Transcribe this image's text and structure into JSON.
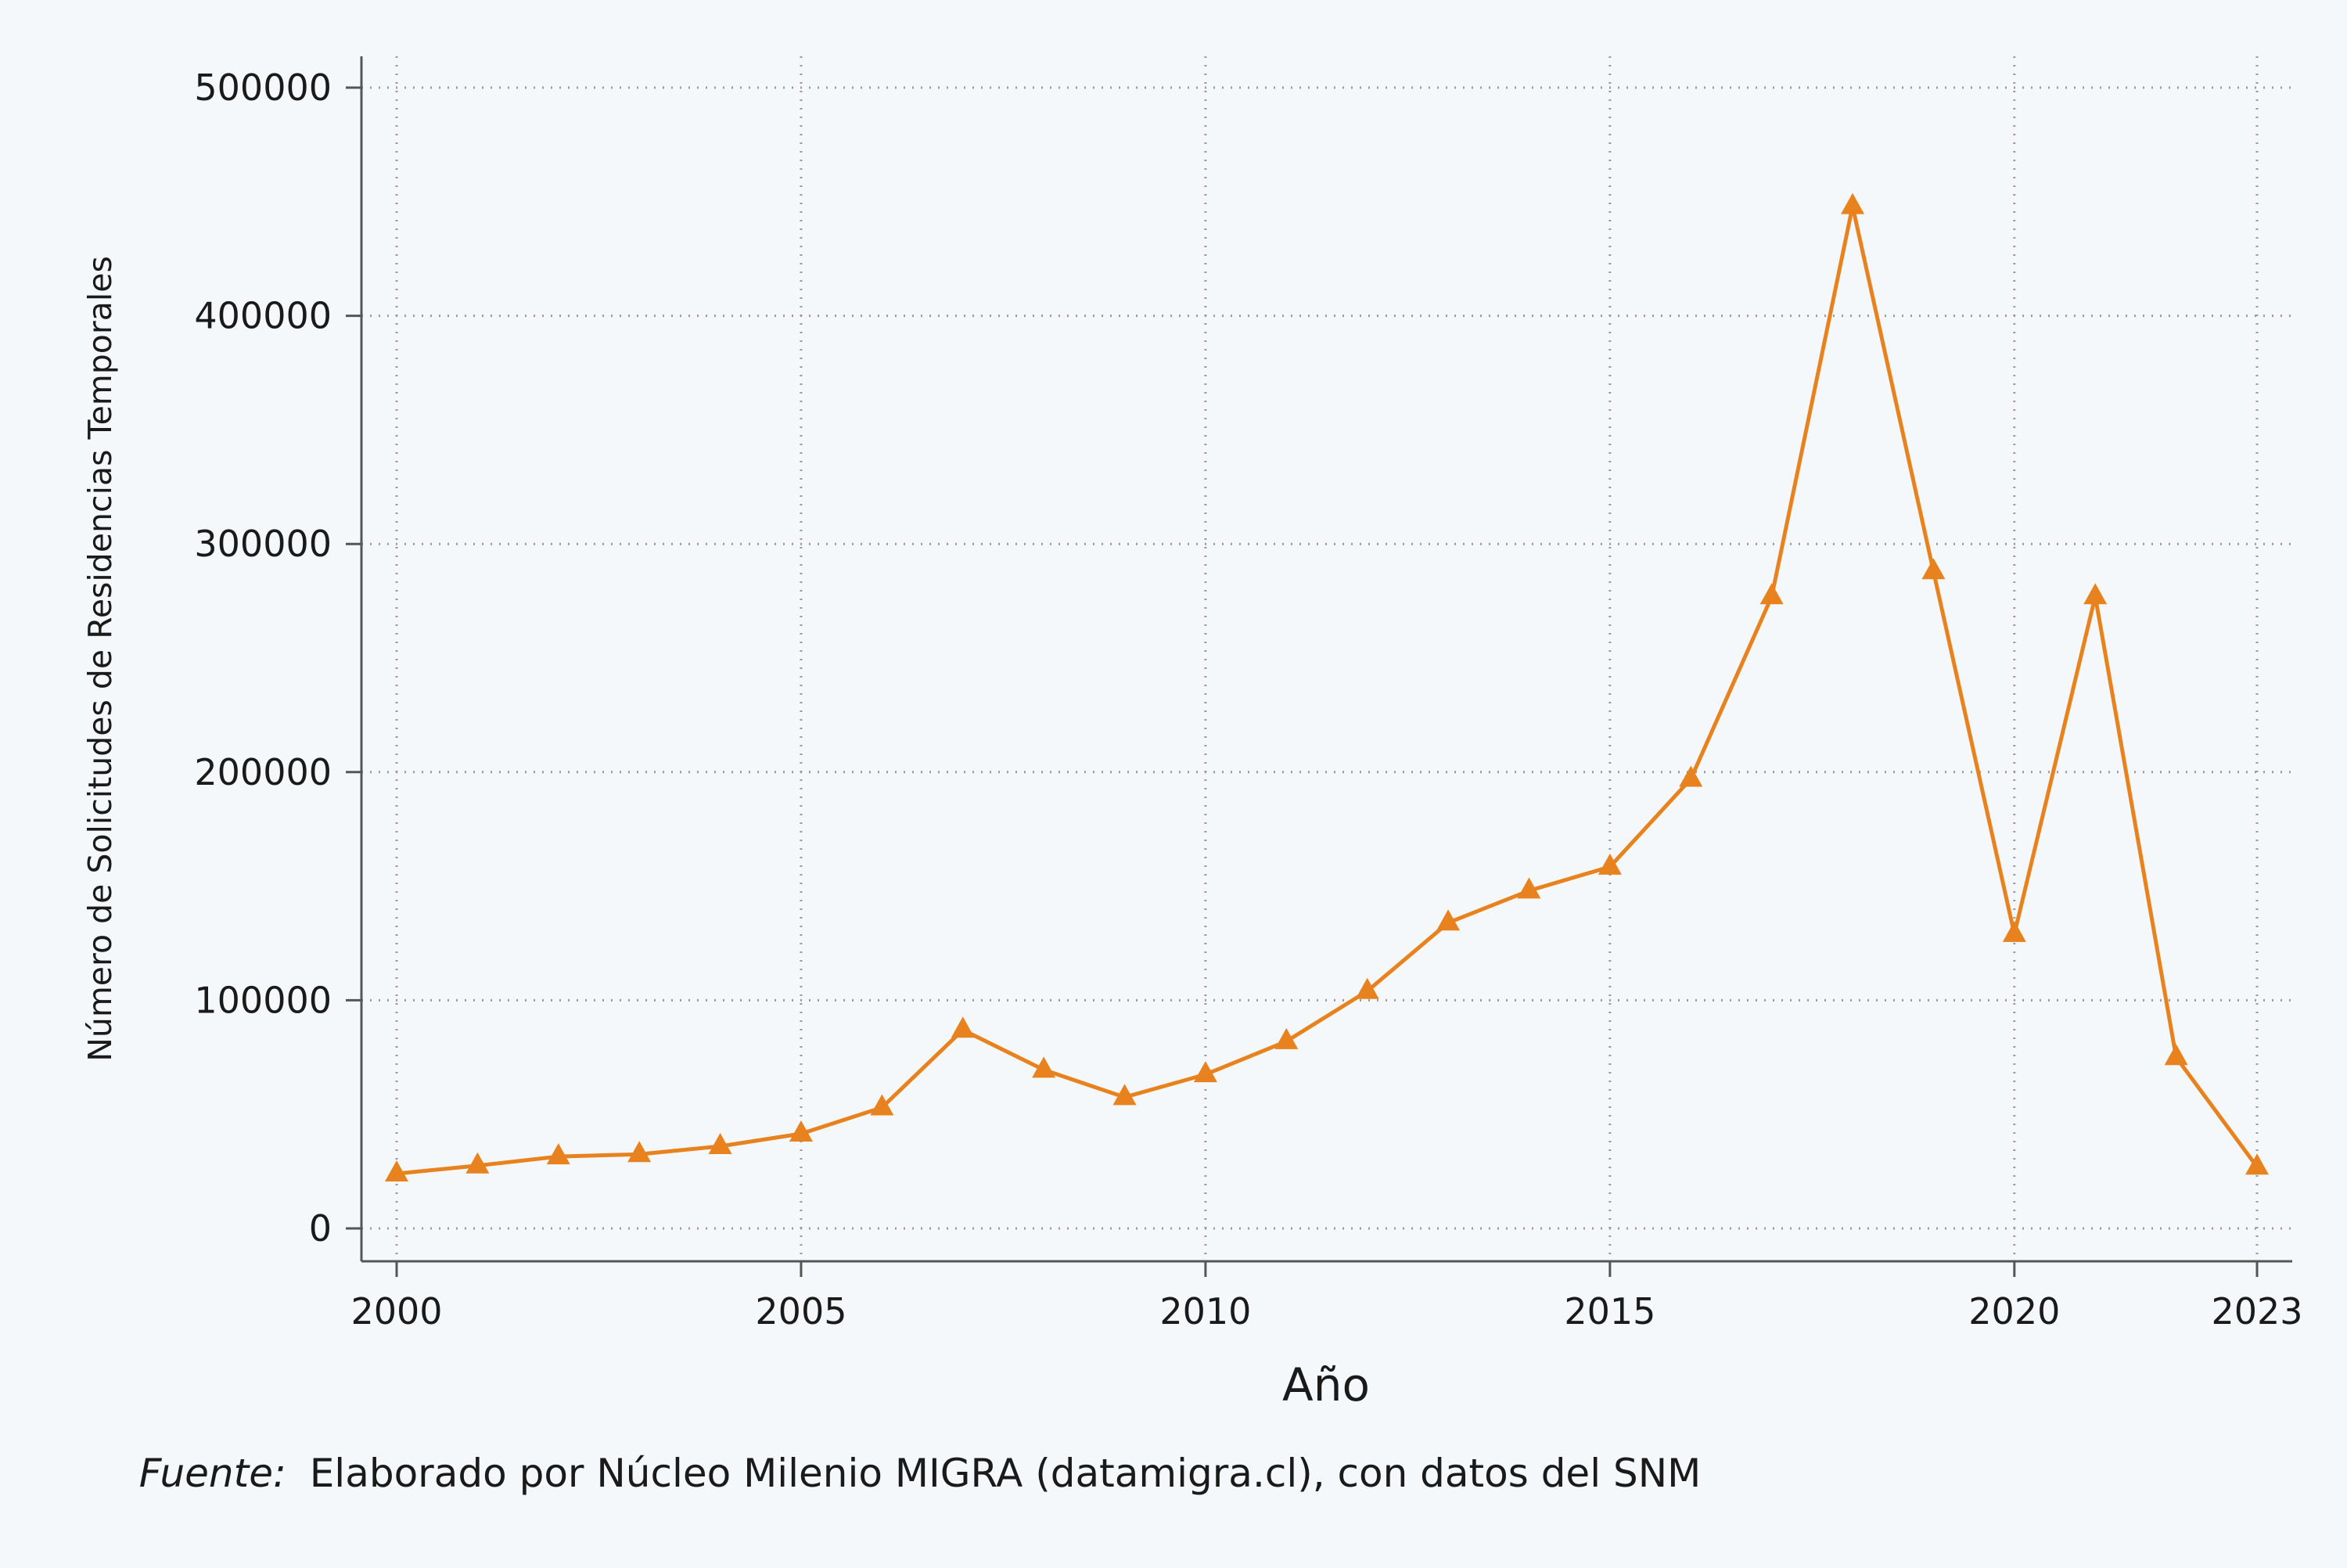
{
  "chart_data": {
    "type": "line",
    "xlabel": "Año",
    "ylabel": "Número de Solicitudes de Residencias Temporales",
    "x_ticks": [
      2000,
      2005,
      2010,
      2015,
      2020,
      2023
    ],
    "y_ticks": [
      0,
      100000,
      200000,
      300000,
      400000,
      500000
    ],
    "xlim": [
      2000,
      2023
    ],
    "ylim": [
      0,
      500000
    ],
    "grid": true,
    "marker": "triangle",
    "color": "#e8821e",
    "series": [
      {
        "x": [
          2000,
          2001,
          2002,
          2003,
          2004,
          2005,
          2006,
          2007,
          2008,
          2009,
          2010,
          2011,
          2012,
          2013,
          2014,
          2015,
          2016,
          2017,
          2018,
          2019,
          2020,
          2021,
          2022,
          2023
        ],
        "values": [
          24000,
          27500,
          31500,
          32500,
          36000,
          41500,
          53000,
          87000,
          69500,
          57500,
          67500,
          82000,
          104000,
          134000,
          148000,
          158500,
          197000,
          277000,
          448000,
          288000,
          129000,
          277000,
          75000,
          27000
        ]
      }
    ]
  },
  "source": {
    "label": "Fuente:",
    "text": "Elaborado por Núcleo Milenio MIGRA (datamigra.cl), con datos del SNM"
  }
}
